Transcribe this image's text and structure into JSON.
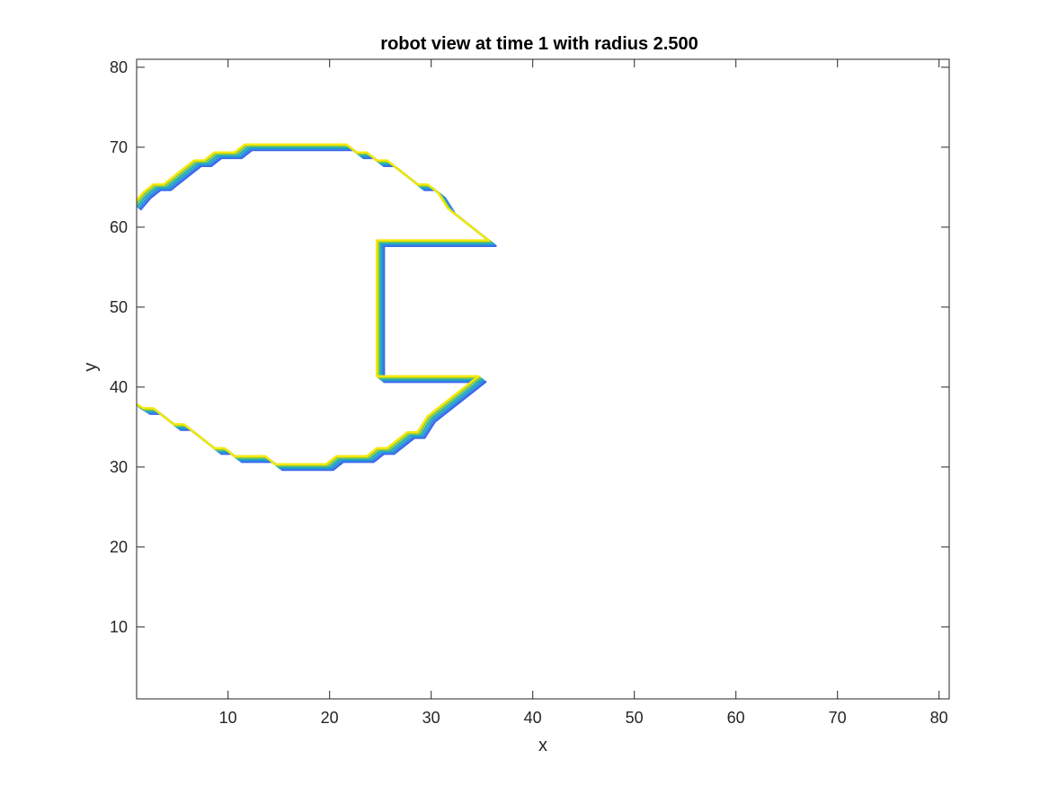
{
  "chart_data": {
    "type": "line",
    "title": "robot view at time 1 with radius 2.500",
    "xlabel": "x",
    "ylabel": "y",
    "xlim": [
      1,
      81
    ],
    "ylim": [
      1,
      81
    ],
    "xticks": [
      10,
      20,
      30,
      40,
      50,
      60,
      70,
      80
    ],
    "yticks": [
      10,
      20,
      30,
      40,
      50,
      60,
      70,
      80
    ],
    "grid": false,
    "legend": "none",
    "contour_colors": [
      "#3a66f0",
      "#2f8fd8",
      "#1fb0b8",
      "#8cc84b",
      "#f5e800"
    ],
    "contour_offsets": [
      0.35,
      0.18,
      0,
      -0.18,
      -0.35
    ],
    "outline": {
      "x": [
        1,
        2,
        3,
        4,
        5,
        6,
        7,
        8,
        9,
        10,
        11,
        12,
        13,
        14,
        15,
        16,
        17,
        18,
        19,
        20,
        21,
        22,
        23,
        24,
        25,
        26,
        27,
        28,
        29,
        30,
        31,
        32,
        33,
        34,
        35,
        36,
        25,
        25,
        35,
        34,
        33,
        32,
        31,
        30,
        29,
        28,
        27,
        26,
        25,
        24,
        23,
        22,
        21,
        20,
        19,
        18,
        17,
        16,
        15,
        14,
        13,
        12,
        11,
        10,
        9,
        8,
        7,
        6,
        5,
        4,
        3,
        2,
        1
      ],
      "y": [
        62.5,
        64,
        65,
        65,
        66,
        67,
        68,
        68,
        69,
        69,
        69,
        70,
        70,
        70,
        70,
        70,
        70,
        70,
        70,
        70,
        70,
        70,
        69,
        69,
        68,
        68,
        67,
        66,
        65,
        65,
        64,
        62,
        61,
        60,
        59,
        58,
        58,
        41,
        41,
        40,
        39,
        38,
        37,
        36,
        34,
        34,
        33,
        32,
        32,
        31,
        31,
        31,
        31,
        30,
        30,
        30,
        30,
        30,
        30,
        31,
        31,
        31,
        31,
        32,
        32,
        33,
        34,
        35,
        35,
        36,
        37,
        37,
        37.8
      ]
    }
  }
}
